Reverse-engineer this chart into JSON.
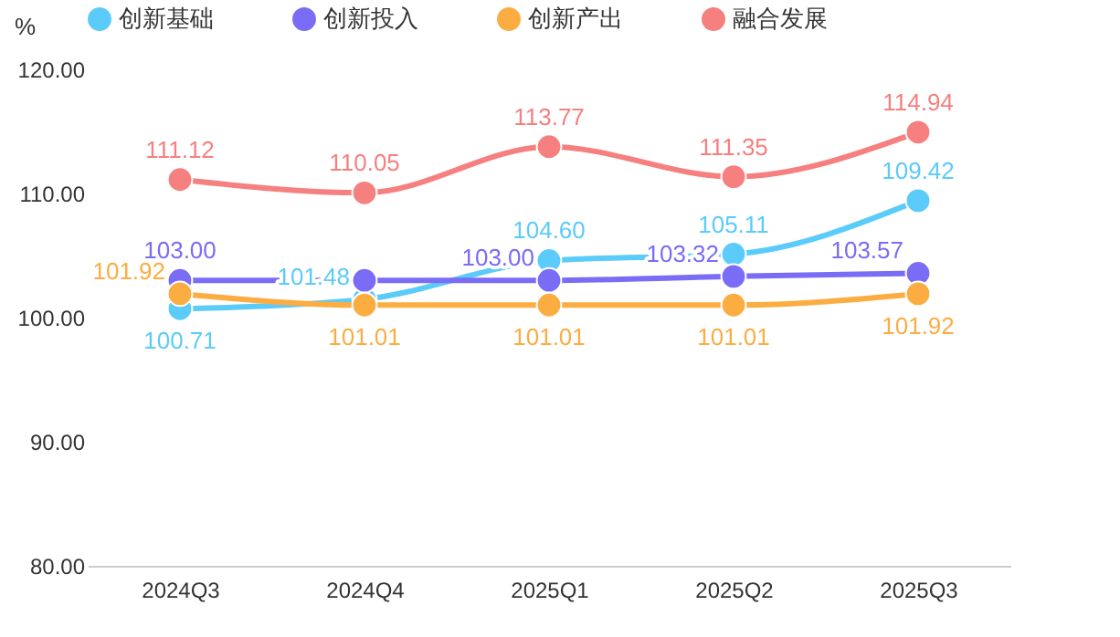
{
  "chart_data": {
    "type": "line",
    "ylabel": "%",
    "categories": [
      "2024Q3",
      "2024Q4",
      "2025Q1",
      "2025Q2",
      "2025Q3"
    ],
    "series": [
      {
        "name": "创新基础",
        "color": "#5bcbfa",
        "values": [
          100.71,
          101.48,
          104.6,
          105.11,
          109.42
        ],
        "value_labels": [
          "100.71",
          "101.48",
          "104.60",
          "105.11",
          "109.42"
        ]
      },
      {
        "name": "创新投入",
        "color": "#7b6cf6",
        "values": [
          103.0,
          103.0,
          103.0,
          103.32,
          103.57
        ],
        "value_labels": [
          "103.00",
          null,
          "103.00",
          "103.32",
          "103.57"
        ]
      },
      {
        "name": "创新产出",
        "color": "#fbad42",
        "values": [
          101.92,
          101.01,
          101.01,
          101.01,
          101.92
        ],
        "value_labels": [
          "101.92",
          "101.01",
          "101.01",
          "101.01",
          "101.92"
        ]
      },
      {
        "name": "融合发展",
        "color": "#f67f7f",
        "values": [
          111.12,
          110.05,
          113.77,
          111.35,
          114.94
        ],
        "value_labels": [
          "111.12",
          "110.05",
          "113.77",
          "111.35",
          "114.94"
        ]
      }
    ],
    "ylim": [
      80,
      120
    ],
    "yticks": [
      {
        "value": 80,
        "label": "80.00"
      },
      {
        "value": 90,
        "label": "90.00"
      },
      {
        "value": 100,
        "label": "100.00"
      },
      {
        "value": 110,
        "label": "110.00"
      },
      {
        "value": 120,
        "label": "120.00"
      }
    ],
    "legend": "top",
    "marker": "circle",
    "line_style": "solid",
    "grid": false
  }
}
